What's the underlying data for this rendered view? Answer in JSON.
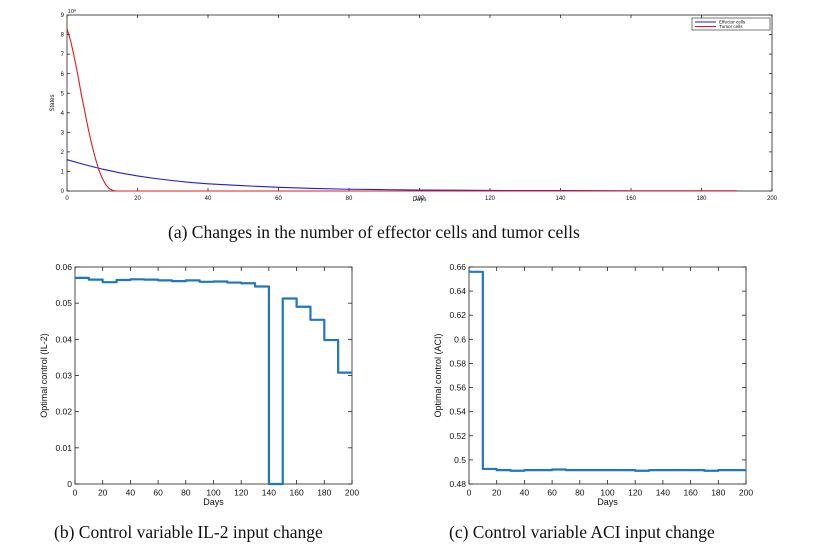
{
  "chart_data": [
    {
      "id": "a",
      "type": "line",
      "caption": "(a) Changes in the number of effector cells and tumor cells",
      "xlabel": "Days",
      "ylabel": "States",
      "exponent_label": "10⁸",
      "xlim": [
        0,
        200
      ],
      "ylim": [
        0,
        9
      ],
      "xticks": [
        0,
        20,
        40,
        60,
        80,
        100,
        120,
        140,
        160,
        180,
        200
      ],
      "yticks": [
        0,
        1,
        2,
        3,
        4,
        5,
        6,
        7,
        8,
        9
      ],
      "legend": "top-right",
      "series": [
        {
          "name": "Effector cells",
          "color": "#1f1fd6",
          "x": [
            0,
            5,
            10,
            15,
            20,
            25,
            30,
            35,
            40,
            50,
            60,
            70,
            80,
            90,
            100,
            110,
            120,
            130,
            140,
            160,
            180,
            190
          ],
          "y": [
            1.6,
            1.35,
            1.12,
            0.93,
            0.77,
            0.64,
            0.53,
            0.44,
            0.37,
            0.27,
            0.19,
            0.13,
            0.09,
            0.07,
            0.05,
            0.04,
            0.03,
            0.02,
            0.02,
            0.01,
            0.01,
            0.01
          ]
        },
        {
          "name": "Tumor cells",
          "color": "#e01b1b",
          "x": [
            0,
            1,
            2,
            3,
            4,
            5,
            6,
            7,
            8,
            9,
            10,
            11,
            12,
            13,
            14,
            15,
            20,
            40,
            80,
            120,
            160,
            190
          ],
          "y": [
            8.3,
            7.7,
            6.9,
            6.0,
            5.0,
            4.1,
            3.2,
            2.4,
            1.7,
            1.1,
            0.65,
            0.32,
            0.12,
            0.03,
            0.0,
            0.0,
            0.0,
            0.0,
            0.0,
            0.0,
            0.0,
            0.0
          ]
        }
      ]
    },
    {
      "id": "b",
      "type": "line",
      "step": true,
      "caption": "(b) Control variable IL-2 input change",
      "xlabel": "Days",
      "ylabel": "Optimal control (IL-2)",
      "xlim": [
        0,
        200
      ],
      "ylim": [
        0,
        0.06
      ],
      "xticks": [
        0,
        20,
        40,
        60,
        80,
        100,
        120,
        140,
        160,
        180,
        200
      ],
      "yticks": [
        0,
        0.01,
        0.02,
        0.03,
        0.04,
        0.05,
        0.06
      ],
      "ytick_labels": [
        "0",
        "0.01",
        "0.02",
        "0.03",
        "0.04",
        "0.05",
        "0.06"
      ],
      "series": [
        {
          "name": "IL-2",
          "color": "#1f77c4",
          "x": [
            0,
            10,
            20,
            30,
            40,
            50,
            60,
            70,
            80,
            90,
            100,
            110,
            120,
            130,
            140,
            150,
            160,
            170,
            180,
            190,
            200
          ],
          "y": [
            0.057,
            0.0565,
            0.0558,
            0.0564,
            0.0566,
            0.0565,
            0.0563,
            0.0561,
            0.0563,
            0.0559,
            0.056,
            0.0557,
            0.0555,
            0.0546,
            0.0,
            0.0513,
            0.049,
            0.0454,
            0.0398,
            0.0308,
            0.0308
          ]
        }
      ]
    },
    {
      "id": "c",
      "type": "line",
      "step": true,
      "caption": "(c) Control variable ACI input change",
      "xlabel": "Days",
      "ylabel": "Optimal control (ACI)",
      "xlim": [
        0,
        200
      ],
      "ylim": [
        0.48,
        0.66
      ],
      "xticks": [
        0,
        20,
        40,
        60,
        80,
        100,
        120,
        140,
        160,
        180,
        200
      ],
      "yticks": [
        0.48,
        0.5,
        0.52,
        0.54,
        0.56,
        0.58,
        0.6,
        0.62,
        0.64,
        0.66
      ],
      "ytick_labels": [
        "0.48",
        "0.5",
        "0.52",
        "0.54",
        "0.56",
        "0.58",
        "0.6",
        "0.62",
        "0.64",
        "0.66"
      ],
      "series": [
        {
          "name": "ACI",
          "color": "#1f77c4",
          "x": [
            0,
            10,
            20,
            30,
            40,
            50,
            60,
            70,
            80,
            90,
            100,
            110,
            120,
            130,
            140,
            150,
            160,
            170,
            180,
            190,
            200
          ],
          "y": [
            0.656,
            0.4925,
            0.4915,
            0.491,
            0.4915,
            0.4915,
            0.492,
            0.4915,
            0.4915,
            0.4915,
            0.4915,
            0.4915,
            0.491,
            0.4915,
            0.4915,
            0.4915,
            0.4915,
            0.491,
            0.4915,
            0.4915,
            0.4915
          ]
        }
      ]
    }
  ]
}
